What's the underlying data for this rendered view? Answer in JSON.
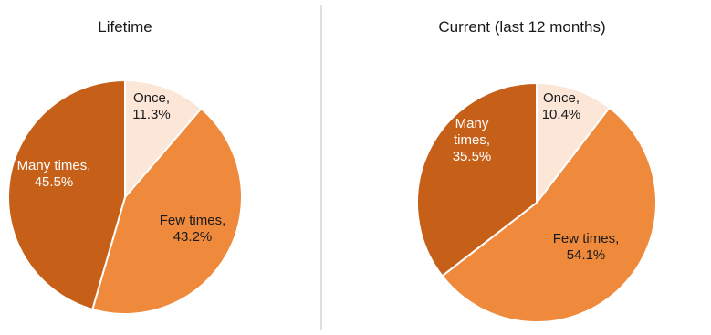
{
  "chart_data": [
    {
      "type": "pie",
      "title": "Lifetime",
      "slices": [
        {
          "label_lines": [
            "Once,",
            "11.3%"
          ],
          "category": "Once",
          "value": 11.3,
          "color": "#fbe6d7",
          "label_color": "#1a1a1a"
        },
        {
          "label_lines": [
            "Few times,",
            "43.2%"
          ],
          "category": "Few times",
          "value": 43.2,
          "color": "#ef8a3c",
          "label_color": "#1a1a1a"
        },
        {
          "label_lines": [
            "Many times,",
            "45.5%"
          ],
          "category": "Many times",
          "value": 45.5,
          "color": "#c65f17",
          "label_color": "#ffffff"
        }
      ]
    },
    {
      "type": "pie",
      "title": "Current (last 12 months)",
      "slices": [
        {
          "label_lines": [
            "Once,",
            "10.4%"
          ],
          "category": "Once",
          "value": 10.4,
          "color": "#fbe6d7",
          "label_color": "#1a1a1a"
        },
        {
          "label_lines": [
            "Few times,",
            "54.1%"
          ],
          "category": "Few times",
          "value": 54.1,
          "color": "#ef8a3c",
          "label_color": "#1a1a1a"
        },
        {
          "label_lines": [
            "Many",
            "times,",
            "35.5%"
          ],
          "category": "Many times",
          "value": 35.5,
          "color": "#c65f17",
          "label_color": "#ffffff"
        }
      ]
    }
  ]
}
